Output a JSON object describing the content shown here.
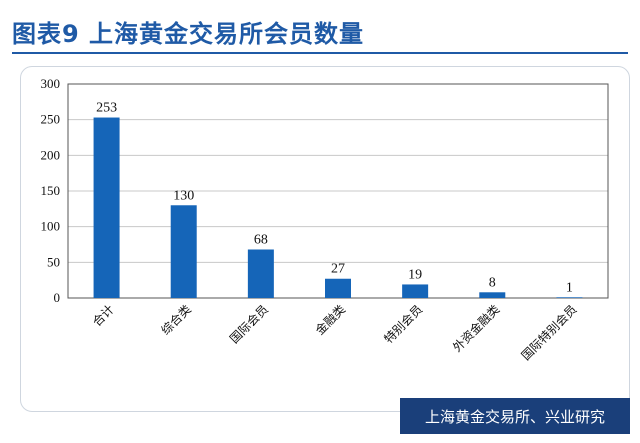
{
  "title": "图表9 上海黄金交易所会员数量",
  "source": "上海黄金交易所、兴业研究",
  "colors": {
    "bar": "#1565b8",
    "title": "#1f5aa6",
    "source_bg": "#1a3f7a"
  },
  "chart_data": {
    "type": "bar",
    "categories": [
      "合计",
      "综合类",
      "国际会员",
      "金融类",
      "特别会员",
      "外资金融类",
      "国际特别会员"
    ],
    "values": [
      253,
      130,
      68,
      27,
      19,
      8,
      1
    ],
    "ylim": [
      0,
      300
    ],
    "yticks": [
      0,
      50,
      100,
      150,
      200,
      250,
      300
    ],
    "grid": true,
    "legend": "none"
  }
}
